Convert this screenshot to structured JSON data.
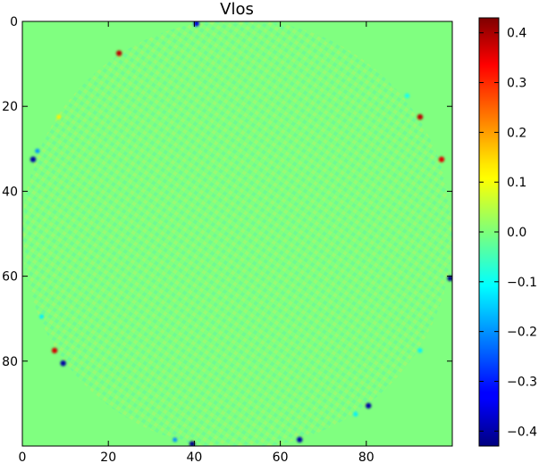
{
  "chart_data": {
    "type": "heatmap",
    "title": "Vlos",
    "xlim": [
      0,
      99
    ],
    "ylim": [
      99,
      0
    ],
    "x_ticks": [
      "0",
      "20",
      "40",
      "60",
      "80"
    ],
    "x_tick_values": [
      0,
      20,
      40,
      60,
      80
    ],
    "y_ticks": [
      "0",
      "20",
      "40",
      "60",
      "80"
    ],
    "y_tick_values": [
      0,
      20,
      40,
      60,
      80
    ],
    "colorbar": {
      "colormap": "jet",
      "vmin": -0.43,
      "vmax": 0.43,
      "ticks": [
        "0.4",
        "0.3",
        "0.2",
        "0.1",
        "0.0",
        "−0.1",
        "−0.2",
        "−0.3",
        "−0.4"
      ],
      "tick_values": [
        0.4,
        0.3,
        0.2,
        0.1,
        0.0,
        -0.1,
        -0.2,
        -0.3,
        -0.4
      ]
    },
    "background_value": 0.0,
    "disk": {
      "center": [
        50,
        50
      ],
      "radius": 50
    },
    "hot_spots": [
      {
        "x": 22,
        "y": 7,
        "value": 0.38
      },
      {
        "x": 92,
        "y": 22,
        "value": 0.38
      },
      {
        "x": 97,
        "y": 32,
        "value": 0.35
      },
      {
        "x": 7,
        "y": 77,
        "value": 0.36
      },
      {
        "x": 2,
        "y": 32,
        "value": -0.4
      },
      {
        "x": 3,
        "y": 30,
        "value": -0.2
      },
      {
        "x": 9,
        "y": 80,
        "value": -0.4
      },
      {
        "x": 99,
        "y": 60,
        "value": -0.42
      },
      {
        "x": 80,
        "y": 90,
        "value": -0.4
      },
      {
        "x": 64,
        "y": 98,
        "value": -0.4
      },
      {
        "x": 39,
        "y": 99,
        "value": -0.42
      },
      {
        "x": 35,
        "y": 98,
        "value": -0.2
      },
      {
        "x": 40,
        "y": 0,
        "value": -0.35
      },
      {
        "x": 4,
        "y": 69,
        "value": -0.12
      },
      {
        "x": 92,
        "y": 77,
        "value": -0.12
      },
      {
        "x": 77,
        "y": 92,
        "value": -0.12
      },
      {
        "x": 8,
        "y": 22,
        "value": 0.12
      },
      {
        "x": 89,
        "y": 17,
        "value": -0.1
      }
    ]
  }
}
